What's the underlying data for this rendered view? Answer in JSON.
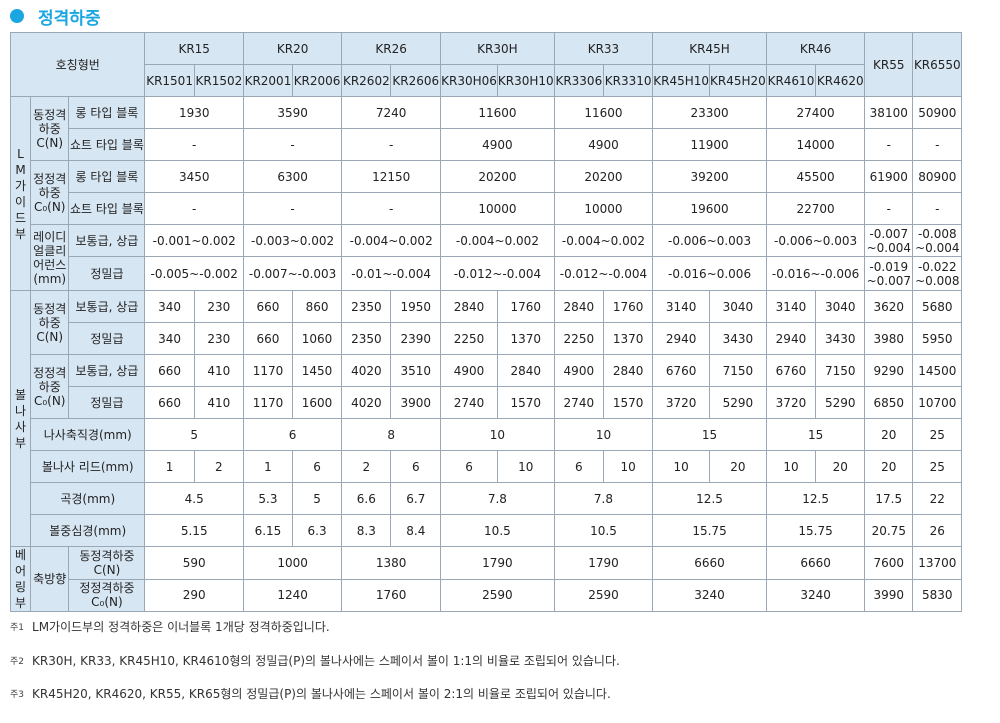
{
  "title": "정격하중",
  "table": {
    "corner": "호칭형번",
    "models": [
      {
        "name": "KR15",
        "subs": [
          "KR1501",
          "KR1502"
        ]
      },
      {
        "name": "KR20",
        "subs": [
          "KR2001",
          "KR2006"
        ]
      },
      {
        "name": "KR26",
        "subs": [
          "KR2602",
          "KR2606"
        ]
      },
      {
        "name": "KR30H",
        "subs": [
          "KR30H06",
          "KR30H10"
        ]
      },
      {
        "name": "KR33",
        "subs": [
          "KR3306",
          "KR3310"
        ]
      },
      {
        "name": "KR45H",
        "subs": [
          "KR45H10",
          "KR45H20"
        ]
      },
      {
        "name": "KR46",
        "subs": [
          "KR4610",
          "KR4620"
        ]
      }
    ],
    "single_models": [
      "KR55",
      "KR6550"
    ],
    "sections": {
      "lm": "L M 가 이 드 부",
      "ball": "볼 나 사 부",
      "bearing": "베 어 링 부"
    },
    "groups": {
      "dyn": [
        "동정격",
        "하중",
        "C(N)"
      ],
      "stat": [
        "정정격",
        "하중",
        "C₀(N)"
      ],
      "rad": [
        "레이디",
        "얼클리",
        "어런스",
        "(mm)"
      ],
      "axial": "축방향"
    },
    "types": {
      "long": "롱 타입 블록",
      "short": "쇼트 타입 블록",
      "normal": "보통급, 상급",
      "precision": "정밀급"
    },
    "labels": {
      "shaft_dia": "나사축직경(mm)",
      "lead": "볼나사 리드(mm)",
      "root_dia": "곡경(mm)",
      "ball_center": "볼중심경(mm)",
      "bear_dyn": [
        "동정격하중",
        "C(N)"
      ],
      "bear_stat": [
        "정정격하중",
        "C₀(N)"
      ]
    },
    "lm_rows": [
      [
        "1930",
        "3590",
        "7240",
        "11600",
        "11600",
        "23300",
        "27400",
        "38100",
        "50900"
      ],
      [
        "-",
        "-",
        "-",
        "4900",
        "4900",
        "11900",
        "14000",
        "-",
        "-"
      ],
      [
        "3450",
        "6300",
        "12150",
        "20200",
        "20200",
        "39200",
        "45500",
        "61900",
        "80900"
      ],
      [
        "-",
        "-",
        "-",
        "10000",
        "10000",
        "19600",
        "22700",
        "-",
        "-"
      ],
      [
        "-0.001~0.002",
        "-0.003~0.002",
        "-0.004~0.002",
        "-0.004~0.002",
        "-0.004~0.002",
        "-0.006~0.003",
        "-0.006~0.003",
        "-0.007 ~0.004",
        "-0.008 ~0.004"
      ],
      [
        "-0.005~-0.002",
        "-0.007~-0.003",
        "-0.01~-0.004",
        "-0.012~-0.004",
        "-0.012~-0.004",
        "-0.016~0.006",
        "-0.016~-0.006",
        "-0.019 ~0.007",
        "-0.022 ~0.008"
      ]
    ],
    "ball_rows": [
      [
        "340",
        "230",
        "660",
        "860",
        "2350",
        "1950",
        "2840",
        "1760",
        "2840",
        "1760",
        "3140",
        "3040",
        "3140",
        "3040",
        "3620",
        "5680"
      ],
      [
        "340",
        "230",
        "660",
        "1060",
        "2350",
        "2390",
        "2250",
        "1370",
        "2250",
        "1370",
        "2940",
        "3430",
        "2940",
        "3430",
        "3980",
        "5950"
      ],
      [
        "660",
        "410",
        "1170",
        "1450",
        "4020",
        "3510",
        "4900",
        "2840",
        "4900",
        "2840",
        "6760",
        "7150",
        "6760",
        "7150",
        "9290",
        "14500"
      ],
      [
        "660",
        "410",
        "1170",
        "1600",
        "4020",
        "3900",
        "2740",
        "1570",
        "2740",
        "1570",
        "3720",
        "5290",
        "3720",
        "5290",
        "6850",
        "10700"
      ]
    ],
    "shaft_dia": [
      "5",
      "6",
      "8",
      "10",
      "10",
      "15",
      "15",
      "20",
      "25"
    ],
    "lead": [
      "1",
      "2",
      "1",
      "6",
      "2",
      "6",
      "6",
      "10",
      "6",
      "10",
      "10",
      "20",
      "10",
      "20",
      "20",
      "25"
    ],
    "root_dia": [
      [
        "4.5"
      ],
      [
        "5.3",
        "5"
      ],
      [
        "6.6",
        "6.7"
      ],
      [
        "7.8"
      ],
      [
        "7.8"
      ],
      [
        "12.5"
      ],
      [
        "12.5"
      ],
      [
        "17.5"
      ],
      [
        "22"
      ]
    ],
    "ball_center": [
      [
        "5.15"
      ],
      [
        "6.15",
        "6.3"
      ],
      [
        "8.3",
        "8.4"
      ],
      [
        "10.5"
      ],
      [
        "10.5"
      ],
      [
        "15.75"
      ],
      [
        "15.75"
      ],
      [
        "20.75"
      ],
      [
        "26"
      ]
    ],
    "bear_rows": [
      [
        "590",
        "1000",
        "1380",
        "1790",
        "1790",
        "6660",
        "6660",
        "7600",
        "13700"
      ],
      [
        "290",
        "1240",
        "1760",
        "2590",
        "2590",
        "3240",
        "3240",
        "3990",
        "5830"
      ]
    ]
  },
  "notes": [
    {
      "mark": "주1",
      "text": "LM가이드부의 정격하중은 이너블록 1개당 정격하중입니다."
    },
    {
      "mark": "주2",
      "text": "KR30H, KR33, KR45H10, KR4610형의 정밀급(P)의 볼나사에는 스페이서 볼이 1:1의 비율로 조립되어 있습니다."
    },
    {
      "mark": "주3",
      "text": "KR45H20, KR4620, KR55, KR65형의 정밀급(P)의 볼나사에는 스페이서 볼이 2:1의 비율로 조립되어 있습니다."
    }
  ]
}
